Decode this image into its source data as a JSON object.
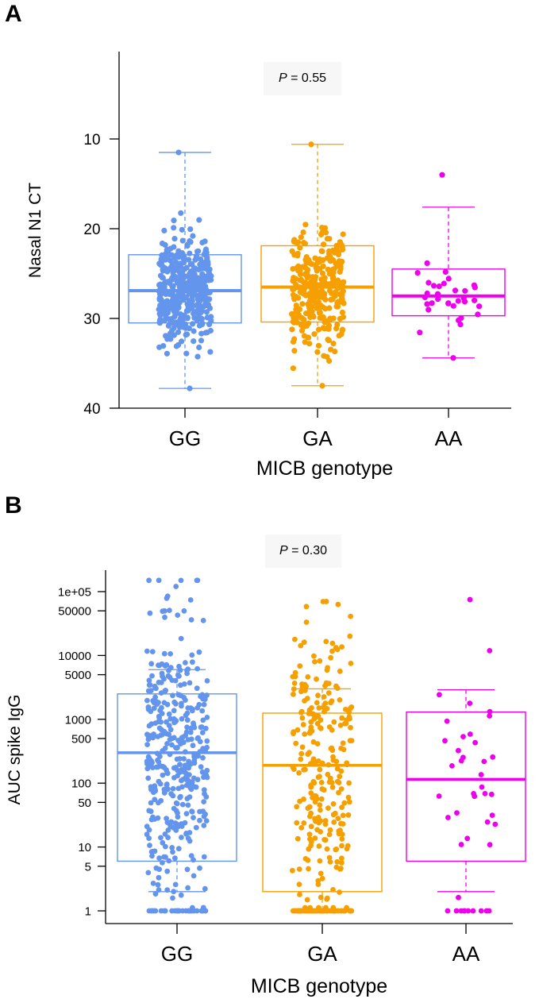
{
  "colors": {
    "GG": "#6495ED",
    "GA": "#F5A000",
    "AA": "#EE00EE"
  },
  "chart_data": [
    {
      "panel": "A",
      "type": "box",
      "ylabel": "Nasal N1 CT",
      "xlabel": "MICB genotype",
      "categories": [
        "GG",
        "GA",
        "AA"
      ],
      "ylim": [
        40,
        0
      ],
      "y_reversed": true,
      "yticks": [
        10,
        20,
        30,
        40
      ],
      "ytick_labels": [
        "10",
        "20",
        "30",
        "40"
      ],
      "p_prefix": "P",
      "p_value": "= 0.55",
      "groups": [
        {
          "name": "GG",
          "q1": 22.9,
          "median": 26.9,
          "q3": 30.5,
          "whisker_low": 11.5,
          "whisker_high": 37.8,
          "n_points": 420,
          "ymin": 11.5,
          "ymax": 37.8
        },
        {
          "name": "GA",
          "q1": 21.9,
          "median": 26.5,
          "q3": 30.4,
          "whisker_low": 10.6,
          "whisker_high": 37.5,
          "n_points": 300,
          "ymin": 10.6,
          "ymax": 37.5
        },
        {
          "name": "AA",
          "q1": 24.5,
          "median": 27.5,
          "q3": 29.7,
          "whisker_low": 17.6,
          "whisker_high": 34.4,
          "n_points": 32,
          "ymin": 14.0,
          "ymax": 34.4
        }
      ]
    },
    {
      "panel": "B",
      "type": "box",
      "ylabel": "AUC spike IgG",
      "xlabel": "MICB genotype",
      "categories": [
        "GG",
        "GA",
        "AA"
      ],
      "yscale": "log",
      "ylim": [
        0.88,
        210000
      ],
      "yticks": [
        1,
        5,
        10,
        50,
        100,
        500,
        1000,
        5000,
        10000,
        50000,
        100000
      ],
      "ytick_labels": [
        "1",
        "5",
        "10",
        "50",
        "100",
        "500",
        "1000",
        "5000",
        "10000",
        "50000",
        "1e+05"
      ],
      "p_prefix": "P",
      "p_value": "= 0.30",
      "groups": [
        {
          "name": "GG",
          "q1": 6,
          "median": 300,
          "q3": 2500,
          "whisker_low": 2,
          "whisker_high": 6000,
          "n_points": 420,
          "ymin": 1,
          "ymax": 150000,
          "floor_fraction": 0.08
        },
        {
          "name": "GA",
          "q1": 2,
          "median": 190,
          "q3": 1250,
          "whisker_low": 1,
          "whisker_high": 3000,
          "n_points": 330,
          "ymin": 1,
          "ymax": 70000,
          "floor_fraction": 0.22
        },
        {
          "name": "AA",
          "q1": 6,
          "median": 115,
          "q3": 1300,
          "whisker_low": 2,
          "whisker_high": 2900,
          "n_points": 42,
          "ymin": 1,
          "ymax": 75000,
          "floor_fraction": 0.2
        }
      ]
    }
  ]
}
